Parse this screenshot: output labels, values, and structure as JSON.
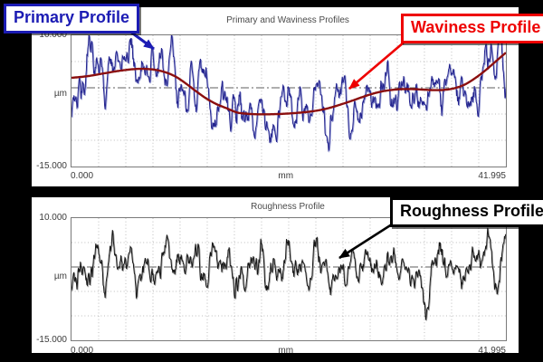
{
  "background_color": "#000000",
  "callouts": {
    "primary": {
      "label": "Primary Profile",
      "color": "#1c1cb4"
    },
    "waviness": {
      "label": "Waviness Profile",
      "color": "#ee0000"
    },
    "roughness": {
      "label": "Roughness Profile",
      "color": "#000000"
    }
  },
  "chart_data": [
    {
      "type": "line",
      "title": "Primary and Waviness Profiles",
      "xlabel": "mm",
      "ylabel": "µm",
      "xlim": [
        0,
        41.995
      ],
      "ylim": [
        -15,
        10
      ],
      "x_tick_labels": [
        "0.000",
        "41.995"
      ],
      "y_tick_labels": [
        "10.000",
        "-15.000"
      ],
      "grid": {
        "x_intervals": 16,
        "h_lines_um": [
          5,
          -5,
          -10
        ],
        "mean_line_um": 0,
        "style": "dotted"
      },
      "waviness_points_mm_um": [
        [
          0,
          1.9
        ],
        [
          1.5,
          2.2
        ],
        [
          3,
          2.7
        ],
        [
          4.5,
          3.2
        ],
        [
          6,
          3.55
        ],
        [
          7,
          3.6
        ],
        [
          8,
          3.45
        ],
        [
          9,
          3.0
        ],
        [
          10,
          2.2
        ],
        [
          11,
          0.9
        ],
        [
          12,
          -0.6
        ],
        [
          13,
          -2.0
        ],
        [
          14,
          -3.1
        ],
        [
          15,
          -3.9
        ],
        [
          16,
          -4.7
        ],
        [
          17,
          -4.95
        ],
        [
          18,
          -5.05
        ],
        [
          19,
          -5.05
        ],
        [
          20,
          -5.0
        ],
        [
          21,
          -4.9
        ],
        [
          22,
          -4.75
        ],
        [
          23,
          -4.55
        ],
        [
          24,
          -4.25
        ],
        [
          25,
          -3.8
        ],
        [
          26,
          -3.2
        ],
        [
          27,
          -2.55
        ],
        [
          28,
          -1.85
        ],
        [
          29,
          -1.2
        ],
        [
          30,
          -0.7
        ],
        [
          31,
          -0.4
        ],
        [
          32,
          -0.25
        ],
        [
          33,
          -0.25
        ],
        [
          34,
          -0.35
        ],
        [
          35,
          -0.45
        ],
        [
          36,
          -0.4
        ],
        [
          37,
          -0.1
        ],
        [
          38,
          0.6
        ],
        [
          39,
          1.8
        ],
        [
          40,
          3.3
        ],
        [
          41,
          5.0
        ],
        [
          41.995,
          6.7
        ]
      ],
      "series": [
        {
          "name": "Primary Profile",
          "color": "#23238e",
          "echo": "#9298d2",
          "width": 1,
          "source": "waviness_plus_noise",
          "noise": {
            "seed": 7,
            "slow_amp": 2.7,
            "fast_amp": 1.15
          }
        },
        {
          "name": "Waviness Profile",
          "color": "#8b0f0f",
          "width": 2.4,
          "source": "waviness"
        }
      ]
    },
    {
      "type": "line",
      "title": "Roughness Profile",
      "xlabel": "mm",
      "ylabel": "µm",
      "xlim": [
        0,
        41.995
      ],
      "ylim": [
        -15,
        10
      ],
      "x_tick_labels": [
        "0.000",
        "41.995"
      ],
      "y_tick_labels": [
        "10.000",
        "-15.000"
      ],
      "grid": {
        "x_intervals": 16,
        "h_lines_um": [
          5,
          -5,
          -10
        ],
        "mean_line_um": 0,
        "style": "dotted"
      },
      "series": [
        {
          "name": "Roughness Profile",
          "color": "#161616",
          "echo": "#9c9c9c",
          "width": 1,
          "source": "noise",
          "noise": {
            "seed": 19,
            "slow_amp": 2.6,
            "fast_amp": 1.05
          }
        }
      ]
    }
  ]
}
